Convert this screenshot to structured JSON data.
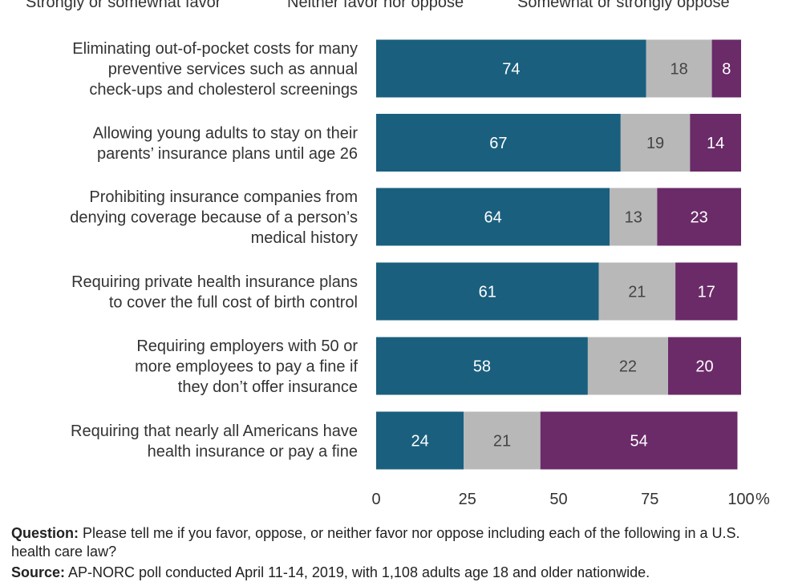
{
  "chart_data": {
    "type": "bar",
    "orientation": "horizontal",
    "stacked": true,
    "legend_position": "top",
    "categories": [
      "Eliminating out-of-pocket costs for many preventive services such as annual check-ups and cholesterol screenings",
      "Allowing young adults to stay on their parents’ insurance plans until age 26",
      "Prohibiting insurance companies from denying coverage because of a person’s medical history",
      "Requiring private health insurance plans to cover the full cost of birth control",
      "Requiring employers with 50 or more employees to pay a fine if they don’t offer insurance",
      "Requiring that nearly all Americans have health insurance or pay a fine"
    ],
    "category_lines": [
      [
        "Eliminating out-of-pocket costs for many",
        "preventive services such as annual",
        "check-ups and cholesterol screenings"
      ],
      [
        "Allowing young adults to stay on their",
        "parents’ insurance plans until age 26"
      ],
      [
        "Prohibiting insurance companies from",
        "denying coverage because of a person’s",
        "medical history"
      ],
      [
        "Requiring private health insurance plans",
        "to cover the full cost of birth control"
      ],
      [
        "Requiring employers with 50 or",
        "more employees to pay a fine if",
        "they don’t offer insurance"
      ],
      [
        "Requiring that nearly all Americans have",
        "health insurance or pay a fine"
      ]
    ],
    "series": [
      {
        "name": "Strongly or somewhat favor",
        "color": "#1a5f7e",
        "label_color": "#ffffff",
        "values": [
          74,
          67,
          64,
          61,
          58,
          24
        ]
      },
      {
        "name": "Neither favor nor oppose",
        "color": "#b8b8b8",
        "label_color": "#444444",
        "values": [
          18,
          19,
          13,
          21,
          22,
          21
        ]
      },
      {
        "name": "Somewhat or strongly oppose",
        "color": "#6a2b68",
        "label_color": "#ffffff",
        "values": [
          8,
          14,
          23,
          17,
          20,
          54
        ]
      }
    ],
    "xlim": [
      0,
      100
    ],
    "xticks": [
      "0",
      "25",
      "50",
      "75",
      "100"
    ],
    "xunit": "%",
    "grid": false
  },
  "footnote": {
    "question_label": "Question:",
    "question_text": " Please tell me if you favor, oppose, or neither favor nor oppose including each of the following in a U.S. health care law?",
    "source_label": "Source:",
    "source_text": " AP-NORC poll conducted April 11-14, 2019, with 1,108 adults age 18 and older nationwide."
  }
}
